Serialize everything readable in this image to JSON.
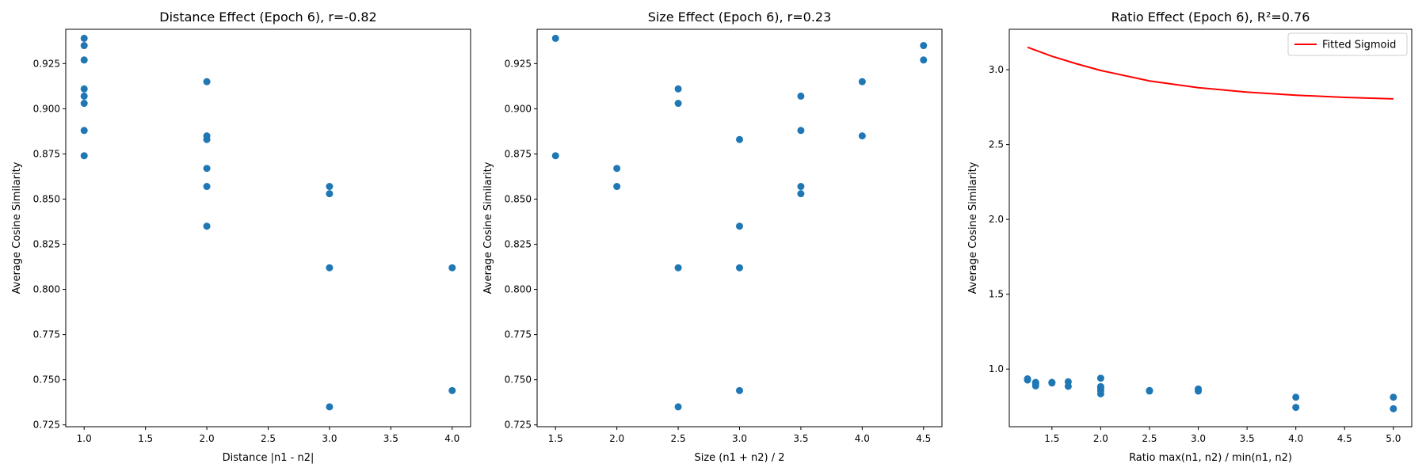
{
  "chart_data": [
    {
      "type": "scatter",
      "title": "Distance Effect (Epoch 6), r=-0.82",
      "xlabel": "Distance |n1 - n2|",
      "ylabel": "Average Cosine Similarity",
      "xlim": [
        0.85,
        4.15
      ],
      "ylim": [
        0.724,
        0.944
      ],
      "xticks": [
        "1.0",
        "1.5",
        "2.0",
        "2.5",
        "3.0",
        "3.5",
        "4.0"
      ],
      "yticks": [
        "0.725",
        "0.750",
        "0.775",
        "0.800",
        "0.825",
        "0.850",
        "0.875",
        "0.900",
        "0.925"
      ],
      "grid": false,
      "marker_color": "#1f77b4",
      "series": [
        {
          "points": [
            [
              1,
              0.939
            ],
            [
              1,
              0.935
            ],
            [
              1,
              0.927
            ],
            [
              1,
              0.911
            ],
            [
              1,
              0.907
            ],
            [
              1,
              0.903
            ],
            [
              1,
              0.888
            ],
            [
              1,
              0.874
            ],
            [
              2,
              0.915
            ],
            [
              2,
              0.885
            ],
            [
              2,
              0.883
            ],
            [
              2,
              0.867
            ],
            [
              2,
              0.857
            ],
            [
              2,
              0.835
            ],
            [
              3,
              0.857
            ],
            [
              3,
              0.853
            ],
            [
              3,
              0.812
            ],
            [
              3,
              0.735
            ],
            [
              4,
              0.812
            ],
            [
              4,
              0.744
            ]
          ]
        }
      ]
    },
    {
      "type": "scatter",
      "title": "Size Effect (Epoch 6), r=0.23",
      "xlabel": "Size (n1 + n2) / 2",
      "ylabel": "Average Cosine Similarity",
      "xlim": [
        1.35,
        4.65
      ],
      "ylim": [
        0.724,
        0.944
      ],
      "xticks": [
        "1.5",
        "2.0",
        "2.5",
        "3.0",
        "3.5",
        "4.0",
        "4.5"
      ],
      "yticks": [
        "0.725",
        "0.750",
        "0.775",
        "0.800",
        "0.825",
        "0.850",
        "0.875",
        "0.900",
        "0.925"
      ],
      "grid": false,
      "marker_color": "#1f77b4",
      "series": [
        {
          "points": [
            [
              1.5,
              0.939
            ],
            [
              1.5,
              0.874
            ],
            [
              2,
              0.867
            ],
            [
              2,
              0.857
            ],
            [
              2.5,
              0.911
            ],
            [
              2.5,
              0.903
            ],
            [
              2.5,
              0.812
            ],
            [
              2.5,
              0.735
            ],
            [
              3,
              0.883
            ],
            [
              3,
              0.835
            ],
            [
              3,
              0.812
            ],
            [
              3,
              0.744
            ],
            [
              3.5,
              0.907
            ],
            [
              3.5,
              0.888
            ],
            [
              3.5,
              0.857
            ],
            [
              3.5,
              0.853
            ],
            [
              4,
              0.915
            ],
            [
              4,
              0.885
            ],
            [
              4.5,
              0.935
            ],
            [
              4.5,
              0.927
            ]
          ]
        }
      ]
    },
    {
      "type": "scatter",
      "title": "Ratio Effect (Epoch 6), R²=0.76",
      "xlabel": "Ratio max(n1, n2) / min(n1, n2)",
      "ylabel": "Average Cosine Similarity",
      "xlim": [
        1.063,
        5.188
      ],
      "ylim": [
        0.615,
        3.27
      ],
      "xticks": [
        "1.5",
        "2.0",
        "2.5",
        "3.0",
        "3.5",
        "4.0",
        "4.5",
        "5.0"
      ],
      "yticks": [
        "1.0",
        "1.5",
        "2.0",
        "2.5",
        "3.0"
      ],
      "grid": false,
      "legend_position": "top-right",
      "marker_color": "#1f77b4",
      "series": [
        {
          "points": [
            [
              1.25,
              0.935
            ],
            [
              1.25,
              0.927
            ],
            [
              1.333,
              0.911
            ],
            [
              1.333,
              0.903
            ],
            [
              1.333,
              0.888
            ],
            [
              1.5,
              0.907
            ],
            [
              1.5,
              0.911
            ],
            [
              1.667,
              0.915
            ],
            [
              1.667,
              0.885
            ],
            [
              2,
              0.939
            ],
            [
              2,
              0.883
            ],
            [
              2,
              0.874
            ],
            [
              2,
              0.857
            ],
            [
              2,
              0.835
            ],
            [
              2.5,
              0.857
            ],
            [
              2.5,
              0.853
            ],
            [
              3,
              0.867
            ],
            [
              3,
              0.853
            ],
            [
              4,
              0.812
            ],
            [
              4,
              0.744
            ],
            [
              5,
              0.812
            ],
            [
              5,
              0.735
            ]
          ]
        }
      ],
      "fit_line": {
        "name": "Fitted Sigmoid",
        "color": "#ff0000",
        "points": [
          [
            1.25,
            3.15
          ],
          [
            1.5,
            3.09
          ],
          [
            1.75,
            3.04
          ],
          [
            2.0,
            2.995
          ],
          [
            2.5,
            2.925
          ],
          [
            3.0,
            2.88
          ],
          [
            3.5,
            2.85
          ],
          [
            4.0,
            2.83
          ],
          [
            4.5,
            2.815
          ],
          [
            5.0,
            2.805
          ]
        ]
      }
    }
  ]
}
